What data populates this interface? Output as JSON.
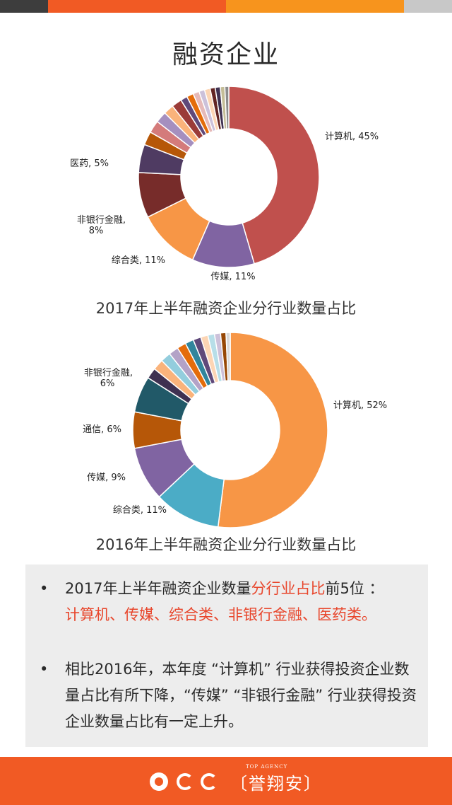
{
  "page": {
    "title": "融资企业"
  },
  "colors": {
    "bar_dark": "#3d3d3d",
    "bar_orange_red": "#f15a24",
    "bar_orange": "#f7941d",
    "bar_grey": "#c8c8c8",
    "highlight": "#e8462c",
    "footer": "#f15a24",
    "summary_bg": "#ededed"
  },
  "chart_data": [
    {
      "type": "pie",
      "donut": true,
      "title": "2017年上半年融资企业分行业数量占比",
      "labels_shown": [
        {
          "text": "计算机, 45%"
        },
        {
          "text": "传媒, 11%"
        },
        {
          "text": "综合类, 11%"
        },
        {
          "text": "非银行金融,",
          "text2": "8%"
        },
        {
          "text": "医药, 5%"
        }
      ],
      "slices": [
        {
          "name": "计算机",
          "value": 45,
          "color": "#c0504d"
        },
        {
          "name": "传媒",
          "value": 11,
          "color": "#8064a2"
        },
        {
          "name": "综合类",
          "value": 11,
          "color": "#f79646"
        },
        {
          "name": "非银行金融",
          "value": 8,
          "color": "#772c2a"
        },
        {
          "name": "医药",
          "value": 5,
          "color": "#4f3b62"
        },
        {
          "name": "",
          "value": 2.4,
          "color": "#b65708"
        },
        {
          "name": "",
          "value": 2.2,
          "color": "#d47b7b"
        },
        {
          "name": "",
          "value": 2.0,
          "color": "#a58fbf"
        },
        {
          "name": "",
          "value": 1.8,
          "color": "#fab37b"
        },
        {
          "name": "",
          "value": 1.8,
          "color": "#9b3b38"
        },
        {
          "name": "",
          "value": 1.2,
          "color": "#5f497a"
        },
        {
          "name": "",
          "value": 1.2,
          "color": "#e46c0a"
        },
        {
          "name": "",
          "value": 1.1,
          "color": "#e6b9b8"
        },
        {
          "name": "",
          "value": 1.0,
          "color": "#ccc1da"
        },
        {
          "name": "",
          "value": 1.0,
          "color": "#fcd5b4"
        },
        {
          "name": "",
          "value": 0.9,
          "color": "#632523"
        },
        {
          "name": "",
          "value": 0.9,
          "color": "#3f3151"
        },
        {
          "name": "",
          "value": 0.8,
          "color": "#c4bd97"
        },
        {
          "name": "",
          "value": 0.7,
          "color": "#8c8c8c"
        }
      ]
    },
    {
      "type": "pie",
      "donut": true,
      "title": "2016年上半年融资企业分行业数量占比",
      "labels_shown": [
        {
          "text": "计算机, 52%"
        },
        {
          "text": "综合类, 11%"
        },
        {
          "text": "传媒, 9%"
        },
        {
          "text": "通信, 6%"
        },
        {
          "text": "非银行金融,",
          "text2": "6%"
        }
      ],
      "slices": [
        {
          "name": "计算机",
          "value": 52,
          "color": "#f79646"
        },
        {
          "name": "综合类",
          "value": 11,
          "color": "#4bacc6"
        },
        {
          "name": "传媒",
          "value": 9,
          "color": "#8064a2"
        },
        {
          "name": "通信",
          "value": 6,
          "color": "#b65708"
        },
        {
          "name": "非银行金融",
          "value": 6,
          "color": "#215968"
        },
        {
          "name": "",
          "value": 1.8,
          "color": "#3f3151"
        },
        {
          "name": "",
          "value": 1.8,
          "color": "#fab37b"
        },
        {
          "name": "",
          "value": 1.7,
          "color": "#93cddd"
        },
        {
          "name": "",
          "value": 1.6,
          "color": "#b3a2c7"
        },
        {
          "name": "",
          "value": 1.5,
          "color": "#e46c0a"
        },
        {
          "name": "",
          "value": 1.4,
          "color": "#31859c"
        },
        {
          "name": "",
          "value": 1.3,
          "color": "#5f497a"
        },
        {
          "name": "",
          "value": 1.2,
          "color": "#fcd5b4"
        },
        {
          "name": "",
          "value": 1.1,
          "color": "#b7dee8"
        },
        {
          "name": "",
          "value": 1.0,
          "color": "#ccc1da"
        },
        {
          "name": "",
          "value": 0.9,
          "color": "#974806"
        },
        {
          "name": "",
          "value": 0.7,
          "color": "#d9d9d9"
        }
      ]
    }
  ],
  "summary": {
    "bullet_symbol": "•",
    "bullet1": {
      "part1": "2017年上半年融资企业数量",
      "highlight1": "分行业占比",
      "part2": "前5位 ：",
      "highlight2": "计算机、传媒、综合类、非银行金融、医药类。"
    },
    "bullet2": {
      "text": "相比2016年，本年度 “计算机” 行业获得投资企业数量占比有所下降，“传媒” “非银行金融” 行业获得投资企业数量占比有一定上升。"
    }
  },
  "footer": {
    "brand_en": "TOP AGENCY",
    "brand_cn": "〔誉翔安〕"
  }
}
